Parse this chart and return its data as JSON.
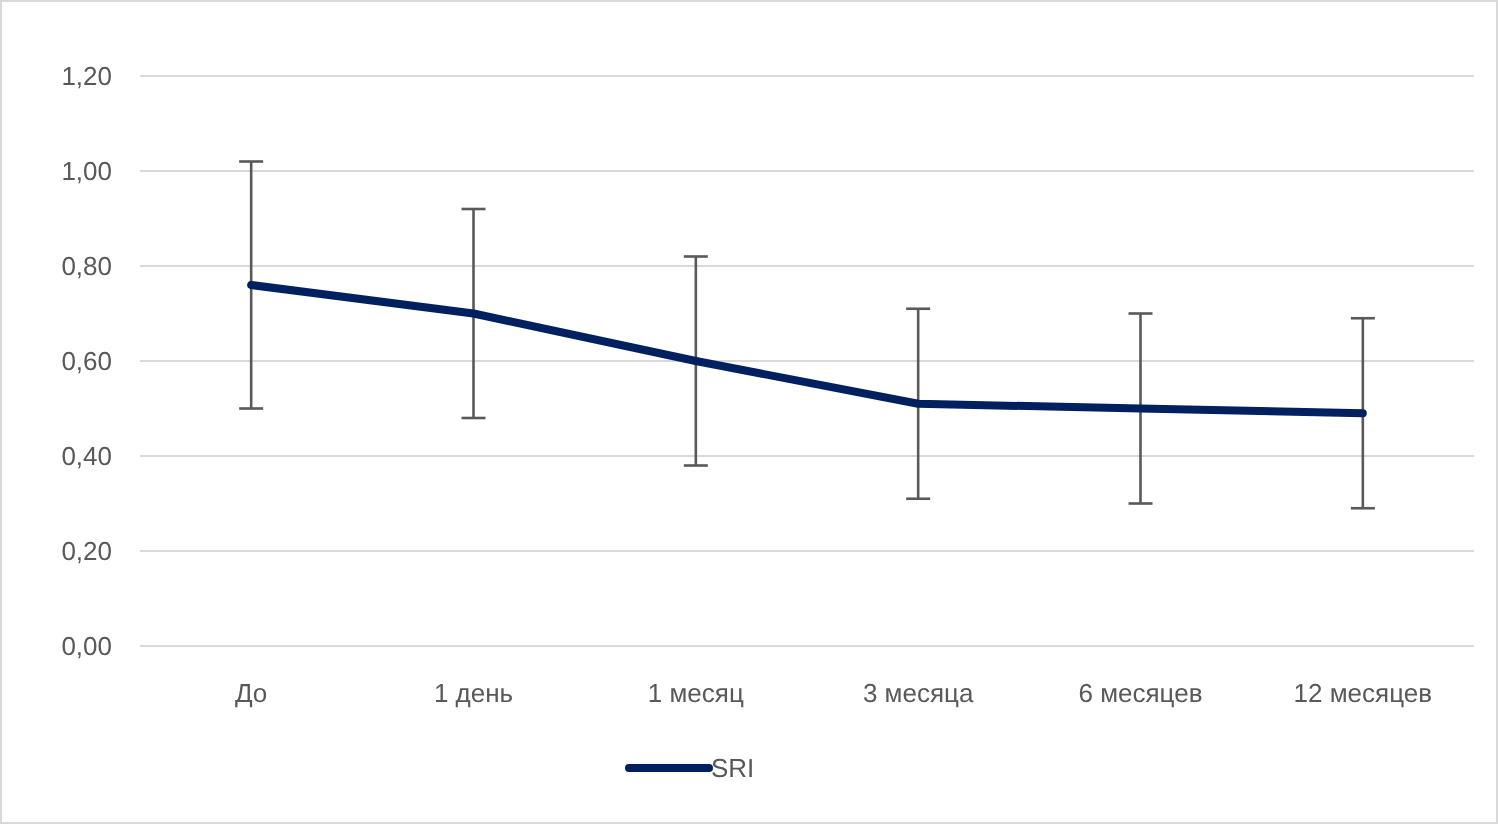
{
  "chart_data": {
    "type": "line",
    "categories": [
      "До",
      "1 день",
      "1 месяц",
      "3 месяца",
      "6 месяцев",
      "12 месяцев"
    ],
    "series": [
      {
        "name": "SRI",
        "color": "#002060",
        "values": [
          0.76,
          0.7,
          0.6,
          0.51,
          0.5,
          0.49
        ],
        "errors": [
          0.26,
          0.22,
          0.22,
          0.2,
          0.2,
          0.2
        ]
      }
    ],
    "ylim": [
      0,
      1.2
    ],
    "yticks": [
      {
        "value": 0,
        "label": "0,00"
      },
      {
        "value": 0.2,
        "label": "0,20"
      },
      {
        "value": 0.4,
        "label": "0,40"
      },
      {
        "value": 0.6,
        "label": "0,60"
      },
      {
        "value": 0.8,
        "label": "0,80"
      },
      {
        "value": 1,
        "label": "1,00"
      },
      {
        "value": 1.2,
        "label": "1,20"
      }
    ],
    "grid": "y",
    "legend": "bottom",
    "marker": "none",
    "line_style": "solid"
  }
}
